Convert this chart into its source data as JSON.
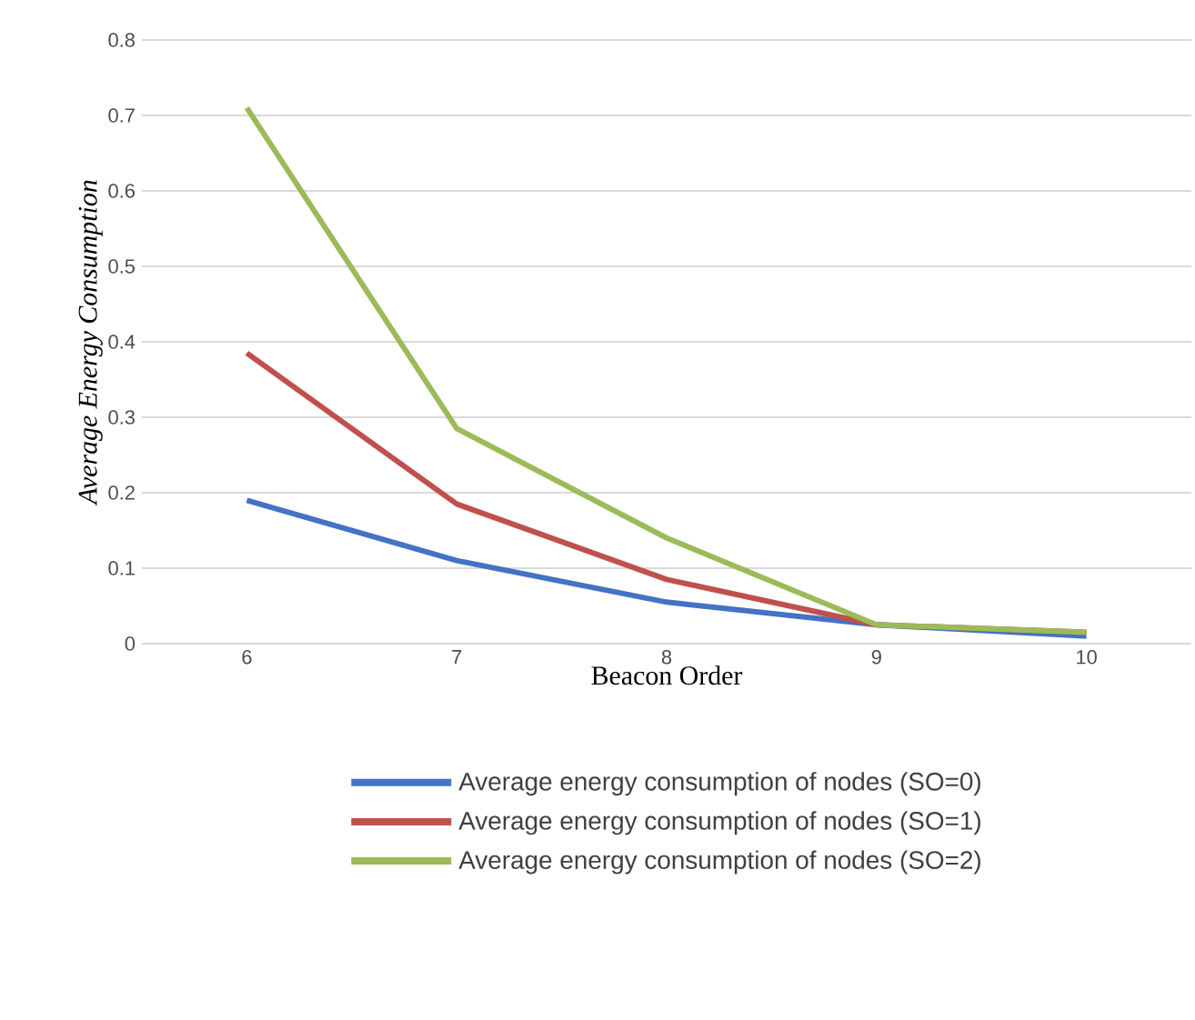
{
  "chart_data": {
    "type": "line",
    "xlabel": "Beacon Order",
    "ylabel": "Average Energy Consumption",
    "categories": [
      "6",
      "7",
      "8",
      "9",
      "10"
    ],
    "series": [
      {
        "name": "Average energy consumption of nodes (SO=0)",
        "color": "#4472c4",
        "values": [
          0.19,
          0.11,
          0.055,
          0.025,
          0.01
        ]
      },
      {
        "name": "Average energy consumption of nodes (SO=1)",
        "color": "#c0504d",
        "values": [
          0.385,
          0.185,
          0.085,
          0.025,
          0.015
        ]
      },
      {
        "name": "Average energy consumption of nodes (SO=2)",
        "color": "#9bbb59",
        "values": [
          0.71,
          0.285,
          0.14,
          0.025,
          0.015
        ]
      }
    ],
    "ylim": [
      0,
      0.8
    ],
    "yticks": [
      0,
      0.1,
      0.2,
      0.3,
      0.4,
      0.5,
      0.6,
      0.7,
      0.8
    ],
    "grid": "y",
    "legend": "bottom",
    "line_style": "solid"
  }
}
